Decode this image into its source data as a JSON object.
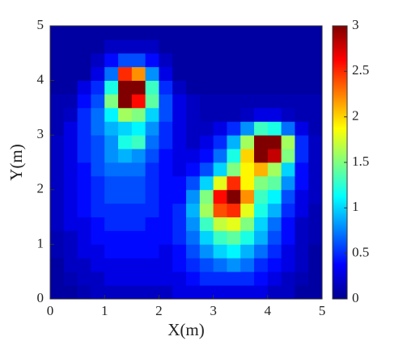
{
  "chart_data": {
    "type": "heatmap",
    "x_label": "X(m)",
    "y_label": "Y(m)",
    "xlim": [
      0,
      5
    ],
    "ylim": [
      0,
      5
    ],
    "xticks": [
      0,
      1,
      2,
      3,
      4,
      5
    ],
    "yticks": [
      0,
      1,
      2,
      3,
      4,
      5
    ],
    "colormap": "jet",
    "clim": [
      0,
      3
    ],
    "cticks": [
      0,
      0.5,
      1,
      1.5,
      2,
      2.5,
      3
    ],
    "x": [
      0.125,
      0.375,
      0.625,
      0.875,
      1.125,
      1.375,
      1.625,
      1.875,
      2.125,
      2.375,
      2.625,
      2.875,
      3.125,
      3.375,
      3.625,
      3.875,
      4.125,
      4.375,
      4.625,
      4.875
    ],
    "y": [
      0.125,
      0.375,
      0.625,
      0.875,
      1.125,
      1.375,
      1.625,
      1.875,
      2.125,
      2.375,
      2.625,
      2.875,
      3.125,
      3.375,
      3.625,
      3.875,
      4.125,
      4.375,
      4.625,
      4.875
    ],
    "z": [
      [
        0.1,
        0.1,
        0.15,
        0.2,
        0.2,
        0.2,
        0.2,
        0.2,
        0.2,
        0.3,
        0.3,
        0.3,
        0.3,
        0.3,
        0.3,
        0.3,
        0.2,
        0.2,
        0.1,
        0.1
      ],
      [
        0.1,
        0.15,
        0.2,
        0.2,
        0.3,
        0.3,
        0.3,
        0.3,
        0.3,
        0.3,
        0.4,
        0.5,
        0.5,
        0.5,
        0.5,
        0.4,
        0.3,
        0.2,
        0.15,
        0.1
      ],
      [
        0.1,
        0.2,
        0.2,
        0.3,
        0.3,
        0.3,
        0.3,
        0.3,
        0.3,
        0.4,
        0.5,
        0.6,
        0.7,
        0.8,
        0.7,
        0.5,
        0.4,
        0.3,
        0.2,
        0.1
      ],
      [
        0.15,
        0.2,
        0.3,
        0.3,
        0.4,
        0.4,
        0.4,
        0.4,
        0.3,
        0.4,
        0.6,
        0.8,
        1.0,
        1.1,
        0.9,
        0.7,
        0.5,
        0.3,
        0.2,
        0.1
      ],
      [
        0.15,
        0.2,
        0.3,
        0.4,
        0.4,
        0.4,
        0.4,
        0.4,
        0.4,
        0.5,
        0.7,
        1.0,
        1.3,
        1.4,
        1.2,
        0.9,
        0.6,
        0.4,
        0.2,
        0.15
      ],
      [
        0.2,
        0.3,
        0.3,
        0.4,
        0.5,
        0.5,
        0.5,
        0.4,
        0.4,
        0.5,
        0.8,
        1.3,
        1.7,
        1.8,
        1.5,
        1.0,
        0.7,
        0.4,
        0.2,
        0.15
      ],
      [
        0.2,
        0.3,
        0.4,
        0.5,
        0.5,
        0.5,
        0.5,
        0.5,
        0.4,
        0.5,
        0.9,
        1.6,
        2.4,
        2.5,
        1.8,
        1.2,
        0.9,
        0.5,
        0.3,
        0.15
      ],
      [
        0.2,
        0.3,
        0.4,
        0.5,
        0.6,
        0.6,
        0.6,
        0.5,
        0.4,
        0.4,
        0.8,
        1.5,
        2.6,
        3,
        2.2,
        1.3,
        1.1,
        0.6,
        0.3,
        0.2
      ],
      [
        0.2,
        0.3,
        0.4,
        0.5,
        0.6,
        0.6,
        0.6,
        0.5,
        0.4,
        0.4,
        0.6,
        1.0,
        1.8,
        2.5,
        1.9,
        1.5,
        1.4,
        0.8,
        0.4,
        0.2
      ],
      [
        0.2,
        0.3,
        0.4,
        0.6,
        0.7,
        0.7,
        0.7,
        0.5,
        0.4,
        0.3,
        0.4,
        0.6,
        1.0,
        1.5,
        1.9,
        2.1,
        1.6,
        1.0,
        0.4,
        0.2
      ],
      [
        0.2,
        0.3,
        0.5,
        0.6,
        0.8,
        0.9,
        0.8,
        0.6,
        0.4,
        0.3,
        0.3,
        0.4,
        0.7,
        1.2,
        2,
        3,
        2.8,
        1.5,
        0.5,
        0.2
      ],
      [
        0.2,
        0.3,
        0.5,
        0.6,
        0.8,
        1.2,
        1.3,
        0.7,
        0.5,
        0.3,
        0.2,
        0.3,
        0.5,
        0.9,
        1.6,
        3,
        3,
        1.6,
        0.5,
        0.2
      ],
      [
        0.15,
        0.3,
        0.5,
        0.7,
        0.9,
        1.0,
        1.1,
        0.8,
        0.5,
        0.3,
        0.2,
        0.2,
        0.3,
        0.5,
        0.8,
        1.3,
        1.2,
        0.7,
        0.3,
        0.15
      ],
      [
        0.15,
        0.2,
        0.5,
        0.7,
        1.1,
        1.6,
        1.5,
        1.0,
        0.6,
        0.3,
        0.2,
        0.15,
        0.15,
        0.15,
        0.2,
        0.3,
        0.3,
        0.2,
        0.15,
        0.15
      ],
      [
        0.15,
        0.15,
        0.4,
        0.6,
        1.5,
        3,
        2.6,
        1.4,
        0.6,
        0.3,
        0.2,
        0.15,
        0.15,
        0.15,
        0.15,
        0.15,
        0.15,
        0.15,
        0.15,
        0.15
      ],
      [
        0.1,
        0.1,
        0.3,
        0.5,
        1.2,
        3,
        3,
        1.3,
        0.5,
        0.2,
        0.1,
        0.1,
        0.1,
        0.1,
        0.1,
        0.1,
        0.1,
        0.1,
        0.1,
        0.1
      ],
      [
        0.1,
        0.1,
        0.1,
        0.3,
        0.7,
        2.5,
        2.2,
        0.8,
        0.3,
        0.1,
        0.1,
        0.1,
        0.1,
        0.1,
        0.1,
        0.1,
        0.1,
        0.1,
        0.1,
        0.1
      ],
      [
        0.1,
        0.1,
        0.1,
        0.2,
        0.4,
        0.6,
        0.6,
        0.4,
        0.2,
        0.1,
        0.1,
        0.1,
        0.1,
        0.1,
        0.1,
        0.1,
        0.1,
        0.1,
        0.1,
        0.1
      ],
      [
        0.1,
        0.1,
        0.1,
        0.1,
        0.2,
        0.2,
        0.2,
        0.2,
        0.1,
        0.1,
        0.1,
        0.1,
        0.1,
        0.1,
        0.1,
        0.1,
        0.1,
        0.1,
        0.1,
        0.1
      ],
      [
        0.1,
        0.1,
        0.1,
        0.1,
        0.1,
        0.1,
        0.1,
        0.1,
        0.1,
        0.1,
        0.1,
        0.1,
        0.1,
        0.1,
        0.1,
        0.1,
        0.1,
        0.1,
        0.1,
        0.1
      ]
    ]
  }
}
